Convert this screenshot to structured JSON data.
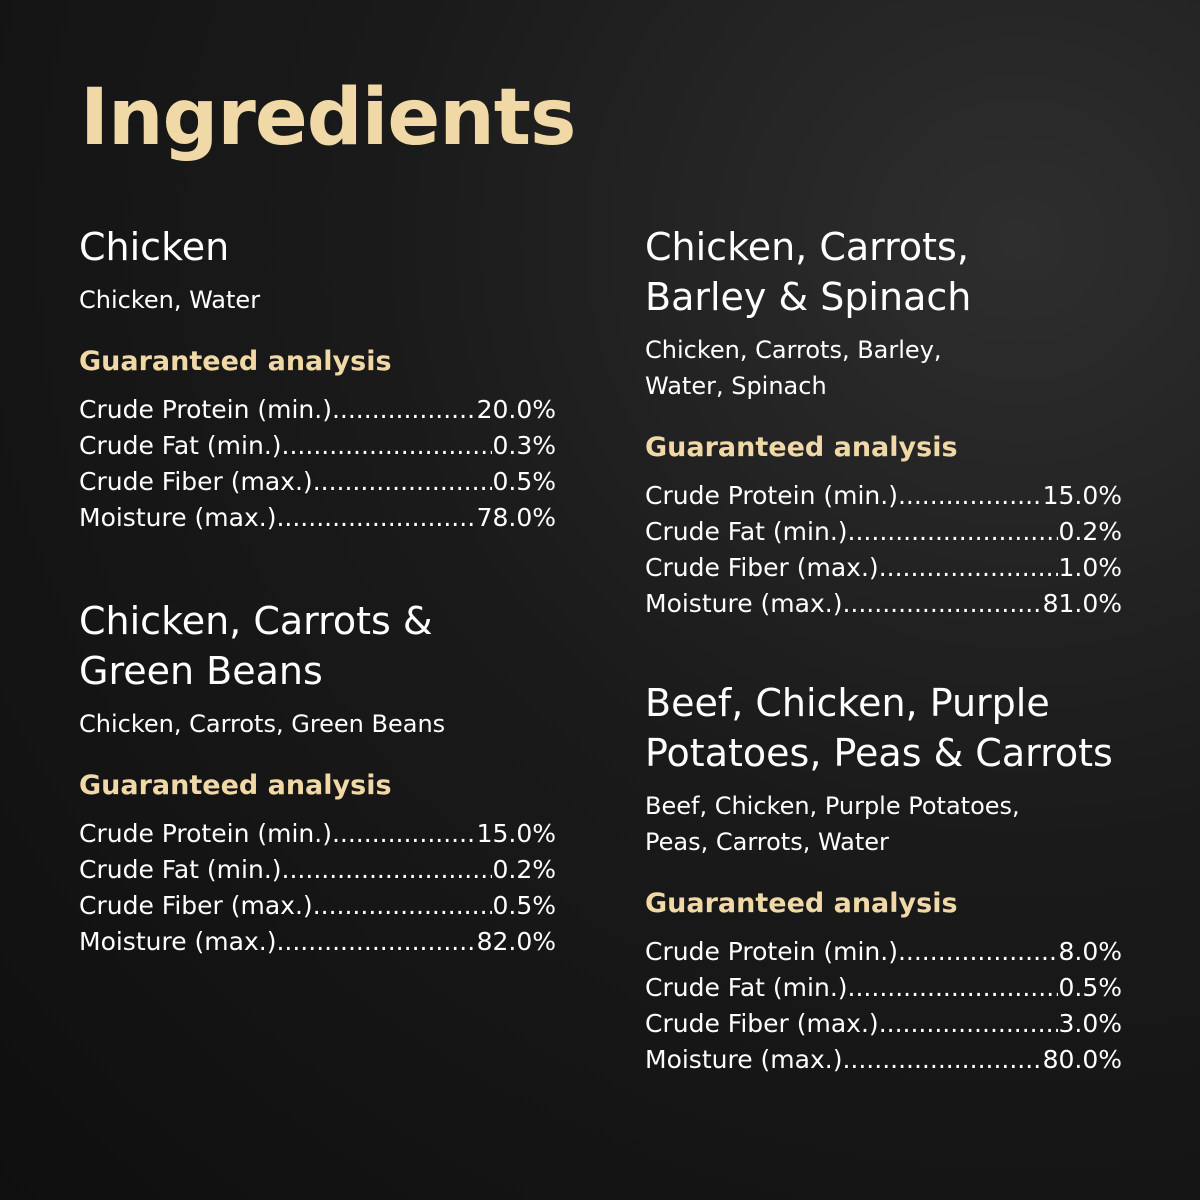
{
  "title": "Ingredients",
  "products": [
    {
      "name": "Chicken",
      "ingredients": "Chicken, Water",
      "analysis_title": "Guaranteed analysis",
      "analysis": [
        {
          "label": "Crude Protein (min.)",
          "value": "20.0%"
        },
        {
          "label": "Crude Fat (min.)",
          "value": "0.3%"
        },
        {
          "label": "Crude Fiber (max.)",
          "value": "0.5%"
        },
        {
          "label": "Moisture (max.)",
          "value": "78.0%"
        }
      ]
    },
    {
      "name": "Chicken, Carrots & Green Beans",
      "ingredients": "Chicken, Carrots, Green Beans",
      "analysis_title": "Guaranteed analysis",
      "analysis": [
        {
          "label": "Crude Protein (min.)",
          "value": "15.0%"
        },
        {
          "label": "Crude Fat (min.)",
          "value": "0.2%"
        },
        {
          "label": "Crude Fiber (max.)",
          "value": "0.5%"
        },
        {
          "label": "Moisture (max.)",
          "value": "82.0%"
        }
      ]
    },
    {
      "name": "Chicken, Carrots, Barley & Spinach",
      "ingredients": "Chicken, Carrots, Barley, Water, Spinach",
      "analysis_title": "Guaranteed analysis",
      "analysis": [
        {
          "label": "Crude Protein (min.)",
          "value": "15.0%"
        },
        {
          "label": "Crude Fat (min.)",
          "value": "0.2%"
        },
        {
          "label": "Crude Fiber (max.)",
          "value": "1.0%"
        },
        {
          "label": "Moisture (max.)",
          "value": "81.0%"
        }
      ]
    },
    {
      "name": "Beef, Chicken, Purple Potatoes, Peas & Carrots",
      "ingredients": "Beef, Chicken, Purple Potatoes, Peas, Carrots, Water",
      "analysis_title": "Guaranteed analysis",
      "analysis": [
        {
          "label": "Crude Protein (min.)",
          "value": "8.0%"
        },
        {
          "label": "Crude Fat (min.)",
          "value": "0.5%"
        },
        {
          "label": "Crude Fiber (max.)",
          "value": "3.0%"
        },
        {
          "label": "Moisture (max.)",
          "value": "80.0%"
        }
      ]
    }
  ],
  "colors": {
    "accent": "#f0d9a6",
    "background": "#1a1a1a",
    "text": "#ffffff"
  }
}
